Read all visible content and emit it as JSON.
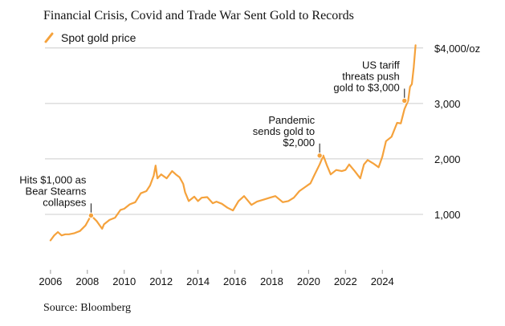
{
  "title": "Financial Crisis, Covid and Trade War Sent Gold to Records",
  "source": "Source: Bloomberg",
  "colors": {
    "series": "#f5a23c",
    "grid": "#cccccc",
    "text": "#111111",
    "marker": "#111111"
  },
  "chart_data": {
    "type": "line",
    "title": "Financial Crisis, Covid and Trade War Sent Gold to Records",
    "xlabel": "",
    "ylabel": "",
    "xlim": [
      2005.7,
      2025.95
    ],
    "ylim": [
      0,
      4200
    ],
    "x_ticks": [
      2006,
      2008,
      2010,
      2012,
      2014,
      2016,
      2018,
      2020,
      2022,
      2024
    ],
    "x_tick_labels": [
      "2006",
      "2008",
      "2010",
      "2012",
      "2014",
      "2016",
      "2018",
      "2020",
      "2022",
      "2024"
    ],
    "y_ticks": [
      1000,
      2000,
      3000,
      4000
    ],
    "y_tick_labels": [
      "1,000",
      "2,000",
      "3,000",
      "$4,000/oz"
    ],
    "grid": "horizontal",
    "legend_position": "top-left",
    "series": [
      {
        "name": "Spot gold price",
        "x": [
          2006.0,
          2006.2,
          2006.4,
          2006.6,
          2006.8,
          2007.0,
          2007.3,
          2007.6,
          2007.9,
          2008.1,
          2008.2,
          2008.5,
          2008.8,
          2008.9,
          2009.2,
          2009.5,
          2009.8,
          2010.0,
          2010.3,
          2010.6,
          2010.9,
          2011.2,
          2011.4,
          2011.6,
          2011.7,
          2011.8,
          2012.0,
          2012.3,
          2012.6,
          2012.8,
          2013.0,
          2013.2,
          2013.3,
          2013.5,
          2013.8,
          2014.0,
          2014.2,
          2014.5,
          2014.8,
          2015.0,
          2015.3,
          2015.6,
          2015.9,
          2016.2,
          2016.5,
          2016.9,
          2017.2,
          2017.6,
          2017.9,
          2018.2,
          2018.6,
          2018.9,
          2019.2,
          2019.5,
          2019.8,
          2020.1,
          2020.3,
          2020.6,
          2020.8,
          2021.0,
          2021.2,
          2021.5,
          2021.8,
          2022.0,
          2022.2,
          2022.5,
          2022.8,
          2023.0,
          2023.2,
          2023.5,
          2023.8,
          2024.0,
          2024.2,
          2024.5,
          2024.8,
          2025.0,
          2025.2,
          2025.4,
          2025.5,
          2025.6,
          2025.7,
          2025.8
        ],
        "values": [
          530,
          620,
          680,
          620,
          640,
          640,
          660,
          700,
          800,
          920,
          980,
          880,
          740,
          820,
          900,
          940,
          1080,
          1100,
          1180,
          1220,
          1380,
          1420,
          1520,
          1700,
          1880,
          1650,
          1720,
          1650,
          1780,
          1720,
          1670,
          1550,
          1400,
          1240,
          1320,
          1240,
          1300,
          1310,
          1200,
          1230,
          1190,
          1120,
          1070,
          1240,
          1330,
          1170,
          1230,
          1270,
          1300,
          1330,
          1220,
          1240,
          1300,
          1420,
          1490,
          1560,
          1700,
          1900,
          2060,
          1880,
          1720,
          1800,
          1780,
          1800,
          1900,
          1780,
          1650,
          1900,
          1980,
          1920,
          1850,
          2040,
          2320,
          2400,
          2650,
          2640,
          2900,
          3050,
          3300,
          3350,
          3650,
          4050
        ]
      }
    ],
    "annotations": [
      {
        "text_lines": [
          "Hits $1,000 as",
          "Bear Stearns",
          "collapses"
        ],
        "x": 2008.2,
        "y": 980
      },
      {
        "text_lines": [
          "Pandemic",
          "sends gold to",
          "$2,000"
        ],
        "x": 2020.6,
        "y": 2060
      },
      {
        "text_lines": [
          "US tariff",
          "threats push",
          "gold to $3,000"
        ],
        "x": 2025.2,
        "y": 3050
      }
    ]
  }
}
